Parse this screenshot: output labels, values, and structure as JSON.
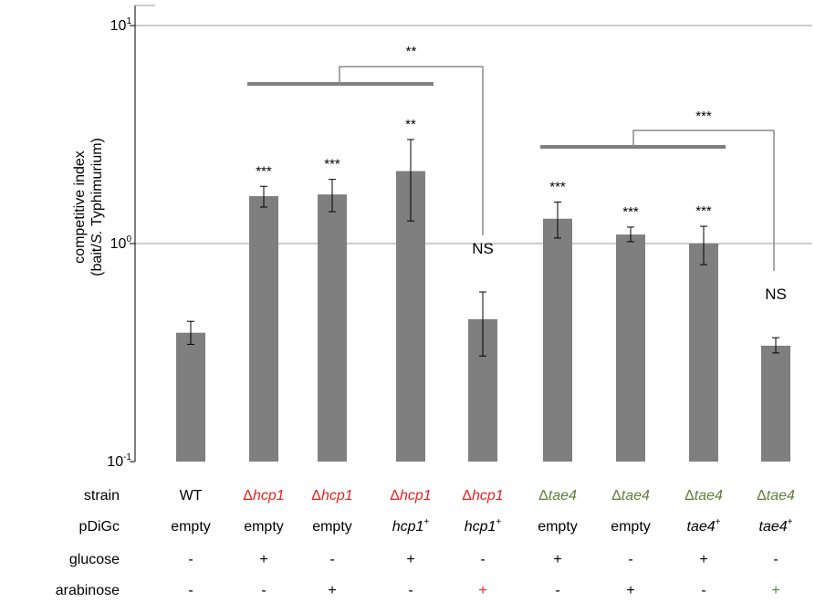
{
  "chart_data": {
    "type": "bar",
    "y_scale": "log",
    "ylim": [
      0.1,
      10
    ],
    "y_ticks": [
      {
        "value": 10,
        "base": "10",
        "exp": "1"
      },
      {
        "value": 1,
        "base": "10",
        "exp": "0"
      },
      {
        "value": 0.1,
        "base": "10",
        "exp": "-1"
      }
    ],
    "ylabel_lines": [
      "competitive index",
      [
        "(bait/",
        "S.",
        " Typhimurium)"
      ]
    ],
    "grid": true,
    "bar_color": "#7f7f7f",
    "values": [
      0.39,
      1.65,
      1.68,
      2.15,
      0.45,
      1.3,
      1.1,
      1.0,
      0.34
    ],
    "error_high": [
      0.44,
      1.83,
      1.97,
      3.0,
      0.6,
      1.55,
      1.19,
      1.2,
      0.37
    ],
    "error_low": [
      0.345,
      1.47,
      1.4,
      1.27,
      0.305,
      1.06,
      1.02,
      0.8,
      0.315
    ],
    "significance": [
      "",
      "***",
      "***",
      "**",
      "NS",
      "***",
      "***",
      "***",
      "NS"
    ],
    "comparisons": [
      {
        "groups": [
          1,
          2,
          3
        ],
        "against": 4,
        "label": "**"
      },
      {
        "groups": [
          5,
          6,
          7
        ],
        "against": 8,
        "label": "***"
      }
    ],
    "conditions": {
      "row_labels": [
        "strain",
        "pDiGc",
        "glucose",
        "arabinose"
      ],
      "strain": [
        {
          "prefix": "",
          "name": "WT",
          "italic": false,
          "color": "#000000"
        },
        {
          "prefix": "Δ",
          "name": "hcp1",
          "italic": true,
          "color": "#e8231c"
        },
        {
          "prefix": "Δ",
          "name": "hcp1",
          "italic": true,
          "color": "#e8231c"
        },
        {
          "prefix": "Δ",
          "name": "hcp1",
          "italic": true,
          "color": "#e8231c"
        },
        {
          "prefix": "Δ",
          "name": "hcp1",
          "italic": true,
          "color": "#e8231c"
        },
        {
          "prefix": "Δ",
          "name": "tae4",
          "italic": true,
          "color": "#5f7f3a"
        },
        {
          "prefix": "Δ",
          "name": "tae4",
          "italic": true,
          "color": "#5f7f3a"
        },
        {
          "prefix": "Δ",
          "name": "tae4",
          "italic": true,
          "color": "#5f7f3a"
        },
        {
          "prefix": "Δ",
          "name": "tae4",
          "italic": true,
          "color": "#5f7f3a"
        }
      ],
      "pDiGc": [
        {
          "name": "empty",
          "sup": "",
          "italic": false
        },
        {
          "name": "empty",
          "sup": "",
          "italic": false
        },
        {
          "name": "empty",
          "sup": "",
          "italic": false
        },
        {
          "name": "hcp1",
          "sup": "+",
          "italic": true
        },
        {
          "name": "hcp1",
          "sup": "+",
          "italic": true
        },
        {
          "name": "empty",
          "sup": "",
          "italic": false
        },
        {
          "name": "empty",
          "sup": "",
          "italic": false
        },
        {
          "name": "tae4",
          "sup": "+",
          "italic": true
        },
        {
          "name": "tae4",
          "sup": "+",
          "italic": true
        }
      ],
      "glucose": [
        "-",
        "+",
        "-",
        "+",
        "-",
        "+",
        "-",
        "+",
        "-"
      ],
      "arabinose": [
        {
          "text": "-",
          "color": "#000000"
        },
        {
          "text": "-",
          "color": "#000000"
        },
        {
          "text": "+",
          "color": "#000000"
        },
        {
          "text": "-",
          "color": "#000000"
        },
        {
          "text": "+",
          "color": "#e8231c"
        },
        {
          "text": "-",
          "color": "#000000"
        },
        {
          "text": "+",
          "color": "#000000"
        },
        {
          "text": "-",
          "color": "#000000"
        },
        {
          "text": "+",
          "color": "#5f7f3a"
        }
      ]
    }
  }
}
